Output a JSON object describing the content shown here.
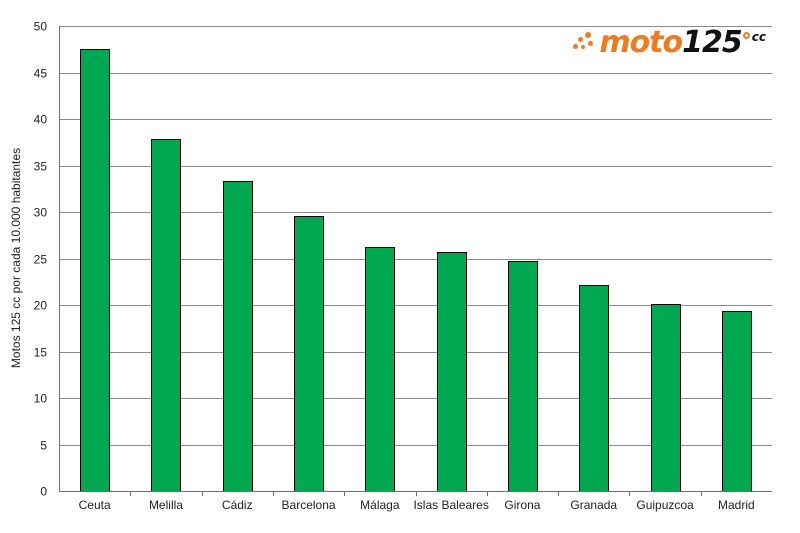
{
  "logo": {
    "text_main": "moto",
    "text_number": "125",
    "text_super": "cc"
  },
  "chart_data": {
    "type": "bar",
    "title": "",
    "xlabel": "",
    "ylabel": "Motos 125 cc por cada 10.000 habitantes",
    "categories": [
      "Ceuta",
      "Melilla",
      "Cádiz",
      "Barcelona",
      "Málaga",
      "Islas Baleares",
      "Girona",
      "Granada",
      "Guipuzcoa",
      "Madrid"
    ],
    "values": [
      47.5,
      37.9,
      33.3,
      29.6,
      26.2,
      25.7,
      24.7,
      22.2,
      20.1,
      19.4
    ],
    "ylim": [
      0,
      50
    ],
    "yticks": [
      0,
      5,
      10,
      15,
      20,
      25,
      30,
      35,
      40,
      45,
      50
    ],
    "grid": true,
    "legend": "none",
    "colors": {
      "bar_fill": "#00a84f",
      "bar_edge": "#000000",
      "grid": "#8a8a8a",
      "logo_accent": "#f07a1c"
    }
  }
}
